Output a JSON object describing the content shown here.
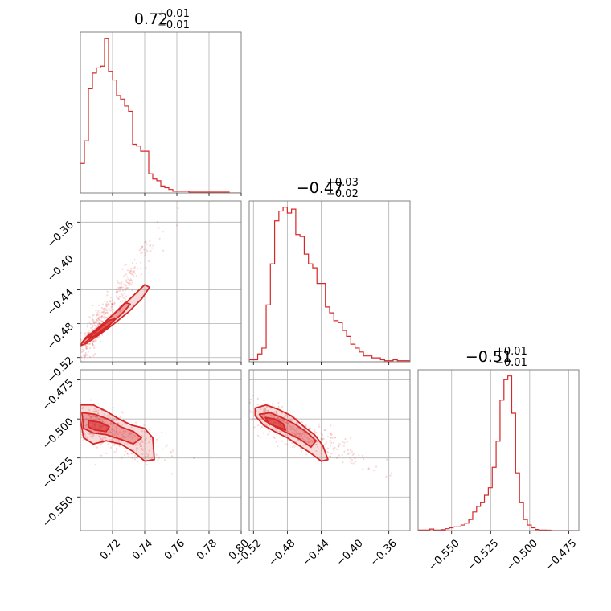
{
  "chart_data": {
    "type": "corner",
    "color": "#d62728",
    "grid": true,
    "titles": [
      {
        "value": "0.72",
        "plus": "+0.01",
        "minus": "−0.01"
      },
      {
        "value": "−0.47",
        "plus": "+0.03",
        "minus": "−0.02"
      },
      {
        "value": "−0.51",
        "plus": "+0.01",
        "minus": "−0.01"
      }
    ],
    "params": [
      {
        "range": [
          0.7,
          0.8
        ],
        "ticks": [
          0.72,
          0.74,
          0.76,
          0.78,
          0.8
        ],
        "tick_labels": [
          "0.72",
          "0.74",
          "0.76",
          "0.78",
          "0.80"
        ]
      },
      {
        "range": [
          -0.525,
          -0.335
        ],
        "ticks": [
          -0.52,
          -0.48,
          -0.44,
          -0.4,
          -0.36
        ],
        "tick_labels": [
          "−0.52",
          "−0.48",
          "−0.44",
          "−0.40",
          "−0.36"
        ]
      },
      {
        "range": [
          -0.5715,
          -0.4685
        ],
        "ticks": [
          -0.55,
          -0.525,
          -0.5,
          -0.475
        ],
        "tick_labels": [
          "−0.550",
          "−0.525",
          "−0.500",
          "−0.475"
        ]
      }
    ],
    "hist1d": [
      {
        "bins": [
          0.7,
          0.7025,
          0.705,
          0.7075,
          0.71,
          0.7125,
          0.715,
          0.7175,
          0.72,
          0.7225,
          0.725,
          0.7275,
          0.73,
          0.7325,
          0.735,
          0.7375,
          0.74,
          0.7425,
          0.745,
          0.7475,
          0.75,
          0.7525,
          0.755,
          0.7575,
          0.76,
          0.7625,
          0.765,
          0.7675,
          0.77,
          0.7725,
          0.775,
          0.7775,
          0.78,
          0.7825,
          0.785,
          0.7875,
          0.79,
          0.7925,
          0.795,
          0.7975,
          0.8
        ],
        "counts": [
          17,
          30,
          60,
          69,
          72,
          73,
          89,
          70,
          65,
          56,
          54,
          50,
          47,
          28,
          27,
          24,
          24,
          11,
          8,
          7,
          4,
          3,
          2,
          1,
          1,
          1,
          1,
          0.5,
          0.5,
          0.5,
          0.5,
          0.5,
          0.5,
          0.5,
          0.5,
          0.5,
          0.5,
          0,
          0,
          0
        ]
      },
      {
        "bins": [
          -0.525,
          -0.52,
          -0.515,
          -0.51,
          -0.505,
          -0.5,
          -0.495,
          -0.49,
          -0.485,
          -0.48,
          -0.475,
          -0.47,
          -0.465,
          -0.46,
          -0.455,
          -0.45,
          -0.445,
          -0.44,
          -0.435,
          -0.43,
          -0.425,
          -0.42,
          -0.415,
          -0.41,
          -0.405,
          -0.4,
          -0.395,
          -0.39,
          -0.385,
          -0.38,
          -0.375,
          -0.37,
          -0.365,
          -0.36,
          -0.355,
          -0.35,
          -0.345,
          -0.34,
          -0.335
        ],
        "counts": [
          1,
          1,
          4,
          7,
          29,
          50,
          72,
          77,
          79,
          76,
          78,
          65,
          64,
          55,
          50,
          48,
          40,
          40,
          28,
          25,
          21,
          20,
          16,
          13,
          9,
          7,
          5,
          3,
          3,
          2,
          2,
          1,
          0.5,
          0.5,
          1,
          0.5,
          0.5,
          0.5
        ]
      },
      {
        "bins": [
          -0.5715,
          -0.569,
          -0.5665,
          -0.564,
          -0.5615,
          -0.559,
          -0.5565,
          -0.554,
          -0.5515,
          -0.549,
          -0.5465,
          -0.544,
          -0.5415,
          -0.539,
          -0.5365,
          -0.534,
          -0.5315,
          -0.529,
          -0.5265,
          -0.524,
          -0.5215,
          -0.519,
          -0.5165,
          -0.514,
          -0.5115,
          -0.509,
          -0.5065,
          -0.504,
          -0.5015,
          -0.499,
          -0.4965,
          -0.494,
          -0.4915,
          -0.489,
          -0.4865,
          -0.484,
          -0.4815,
          -0.479,
          -0.4765,
          -0.474,
          -0.4715,
          -0.469
        ],
        "counts": [
          0.3,
          0.3,
          0.3,
          0.8,
          0.3,
          0.3,
          0.5,
          1,
          1.5,
          2,
          2,
          3,
          4,
          6,
          10,
          13,
          15,
          19,
          23,
          34,
          48,
          70,
          81,
          83,
          63,
          31,
          15,
          6,
          3,
          1.5,
          0.6,
          0.3,
          0.3,
          0.2,
          0,
          0,
          0,
          0,
          0,
          0,
          0
        ]
      }
    ],
    "hist2d": [
      {
        "pair": [
          0,
          1
        ],
        "rho": 0.95,
        "center": [
          0.712,
          -0.48
        ],
        "sigma": [
          0.011,
          0.033
        ],
        "contours": [
          [
            [
              0.7,
              -0.506
            ],
            [
              0.703,
              -0.497
            ],
            [
              0.711,
              -0.485
            ],
            [
              0.72,
              -0.47
            ],
            [
              0.728,
              -0.456
            ],
            [
              0.734,
              -0.445
            ],
            [
              0.74,
              -0.434
            ],
            [
              0.743,
              -0.437
            ],
            [
              0.738,
              -0.451
            ],
            [
              0.73,
              -0.466
            ],
            [
              0.721,
              -0.48
            ],
            [
              0.711,
              -0.494
            ],
            [
              0.704,
              -0.503
            ],
            [
              0.7,
              -0.506
            ]
          ],
          [
            [
              0.701,
              -0.502
            ],
            [
              0.706,
              -0.493
            ],
            [
              0.713,
              -0.482
            ],
            [
              0.721,
              -0.468
            ],
            [
              0.728,
              -0.455
            ],
            [
              0.731,
              -0.457
            ],
            [
              0.726,
              -0.468
            ],
            [
              0.718,
              -0.481
            ],
            [
              0.71,
              -0.493
            ],
            [
              0.703,
              -0.502
            ],
            [
              0.701,
              -0.502
            ]
          ],
          [
            [
              0.705,
              -0.497
            ],
            [
              0.711,
              -0.487
            ],
            [
              0.718,
              -0.476
            ],
            [
              0.722,
              -0.474
            ],
            [
              0.717,
              -0.484
            ],
            [
              0.71,
              -0.494
            ],
            [
              0.705,
              -0.497
            ]
          ]
        ]
      },
      {
        "pair": [
          0,
          2
        ],
        "rho": -0.6,
        "center": [
          0.715,
          -0.506
        ],
        "sigma": [
          0.011,
          0.008
        ],
        "contours": [
          [
            [
              0.7,
              -0.491
            ],
            [
              0.708,
              -0.491
            ],
            [
              0.716,
              -0.495
            ],
            [
              0.724,
              -0.5
            ],
            [
              0.732,
              -0.504
            ],
            [
              0.74,
              -0.506
            ],
            [
              0.745,
              -0.512
            ],
            [
              0.746,
              -0.526
            ],
            [
              0.74,
              -0.527
            ],
            [
              0.733,
              -0.521
            ],
            [
              0.725,
              -0.516
            ],
            [
              0.716,
              -0.514
            ],
            [
              0.708,
              -0.516
            ],
            [
              0.702,
              -0.512
            ],
            [
              0.7,
              -0.5
            ],
            [
              0.7,
              -0.491
            ]
          ],
          [
            [
              0.701,
              -0.496
            ],
            [
              0.709,
              -0.497
            ],
            [
              0.717,
              -0.5
            ],
            [
              0.725,
              -0.505
            ],
            [
              0.733,
              -0.508
            ],
            [
              0.738,
              -0.512
            ],
            [
              0.733,
              -0.516
            ],
            [
              0.725,
              -0.513
            ],
            [
              0.716,
              -0.51
            ],
            [
              0.708,
              -0.509
            ],
            [
              0.702,
              -0.506
            ],
            [
              0.701,
              -0.496
            ]
          ],
          [
            [
              0.705,
              -0.501
            ],
            [
              0.712,
              -0.502
            ],
            [
              0.718,
              -0.505
            ],
            [
              0.716,
              -0.508
            ],
            [
              0.709,
              -0.507
            ],
            [
              0.705,
              -0.505
            ],
            [
              0.705,
              -0.501
            ]
          ]
        ]
      },
      {
        "pair": [
          1,
          2
        ],
        "rho": -0.8,
        "center": [
          -0.48,
          -0.505
        ],
        "sigma": [
          0.028,
          0.008
        ],
        "contours": [
          [
            [
              -0.518,
              -0.493
            ],
            [
              -0.505,
              -0.491
            ],
            [
              -0.49,
              -0.494
            ],
            [
              -0.475,
              -0.498
            ],
            [
              -0.46,
              -0.505
            ],
            [
              -0.448,
              -0.51
            ],
            [
              -0.438,
              -0.517
            ],
            [
              -0.432,
              -0.526
            ],
            [
              -0.44,
              -0.527
            ],
            [
              -0.452,
              -0.522
            ],
            [
              -0.466,
              -0.517
            ],
            [
              -0.48,
              -0.512
            ],
            [
              -0.495,
              -0.508
            ],
            [
              -0.508,
              -0.504
            ],
            [
              -0.518,
              -0.498
            ],
            [
              -0.518,
              -0.493
            ]
          ],
          [
            [
              -0.513,
              -0.497
            ],
            [
              -0.5,
              -0.496
            ],
            [
              -0.487,
              -0.499
            ],
            [
              -0.472,
              -0.503
            ],
            [
              -0.458,
              -0.508
            ],
            [
              -0.446,
              -0.514
            ],
            [
              -0.452,
              -0.518
            ],
            [
              -0.465,
              -0.513
            ],
            [
              -0.48,
              -0.509
            ],
            [
              -0.494,
              -0.505
            ],
            [
              -0.507,
              -0.501
            ],
            [
              -0.513,
              -0.497
            ]
          ],
          [
            [
              -0.506,
              -0.499
            ],
            [
              -0.495,
              -0.5
            ],
            [
              -0.485,
              -0.503
            ],
            [
              -0.482,
              -0.507
            ],
            [
              -0.492,
              -0.505
            ],
            [
              -0.502,
              -0.503
            ],
            [
              -0.506,
              -0.499
            ]
          ]
        ]
      }
    ]
  }
}
